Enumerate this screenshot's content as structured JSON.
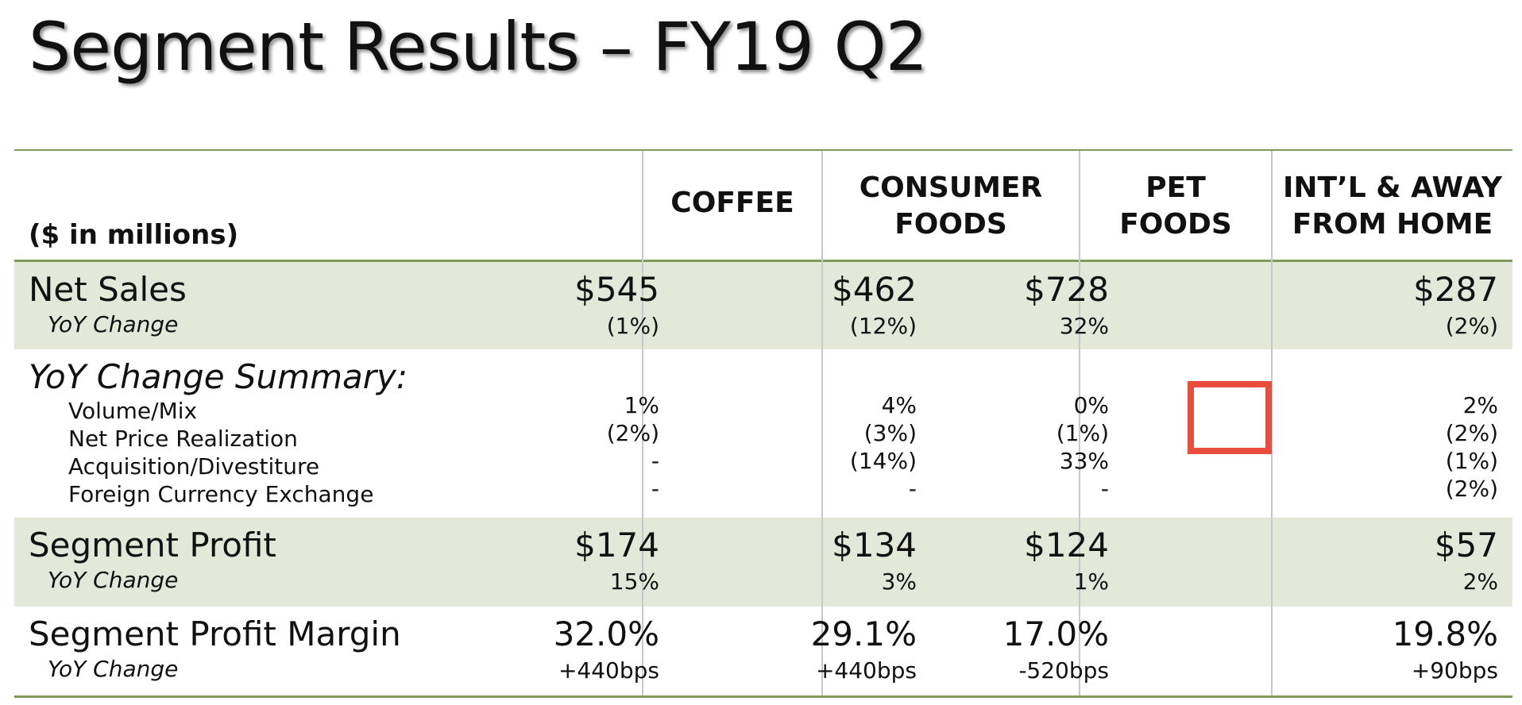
{
  "title": "Segment Results – FY19 Q2",
  "units_label": "($ in millions)",
  "columns": [
    {
      "key": "coffee",
      "line1": "COFFEE",
      "line2": ""
    },
    {
      "key": "consumer",
      "line1": "CONSUMER",
      "line2": "FOODS"
    },
    {
      "key": "pet",
      "line1": "PET",
      "line2": "FOODS"
    },
    {
      "key": "intl",
      "line1": "INT’L & AWAY",
      "line2": "FROM HOME"
    }
  ],
  "net_sales": {
    "label": "Net Sales",
    "sub_label": "YoY Change",
    "values": [
      "$545",
      "$462",
      "$728",
      "$287"
    ],
    "changes": [
      "(1%)",
      "(12%)",
      "32%",
      "(2%)"
    ]
  },
  "summary": {
    "label": "YoY Change Summary:",
    "components": [
      "Volume/Mix",
      "Net Price Realization",
      "Acquisition/Divestiture",
      "Foreign Currency Exchange"
    ],
    "values": [
      [
        "1%",
        "(2%)",
        "-",
        "-"
      ],
      [
        "4%",
        "(3%)",
        "(14%)",
        "-"
      ],
      [
        "0%",
        "(1%)",
        "33%",
        "-"
      ],
      [
        "2%",
        "(2%)",
        "(1%)",
        "(2%)"
      ]
    ]
  },
  "segment_profit": {
    "label": "Segment Profit",
    "sub_label": "YoY Change",
    "values": [
      "$174",
      "$134",
      "$124",
      "$57"
    ],
    "changes": [
      "15%",
      "3%",
      "1%",
      "2%"
    ]
  },
  "segment_margin": {
    "label": "Segment Profit Margin",
    "sub_label": "YoY Change",
    "values": [
      "32.0%",
      "29.1%",
      "17.0%",
      "19.8%"
    ],
    "changes": [
      "+440bps",
      "+440bps",
      "-520bps",
      "+90bps"
    ]
  },
  "colors": {
    "band": "#e3e8d9",
    "rule": "#7f9a5a",
    "highlight": "#e74c3c"
  }
}
